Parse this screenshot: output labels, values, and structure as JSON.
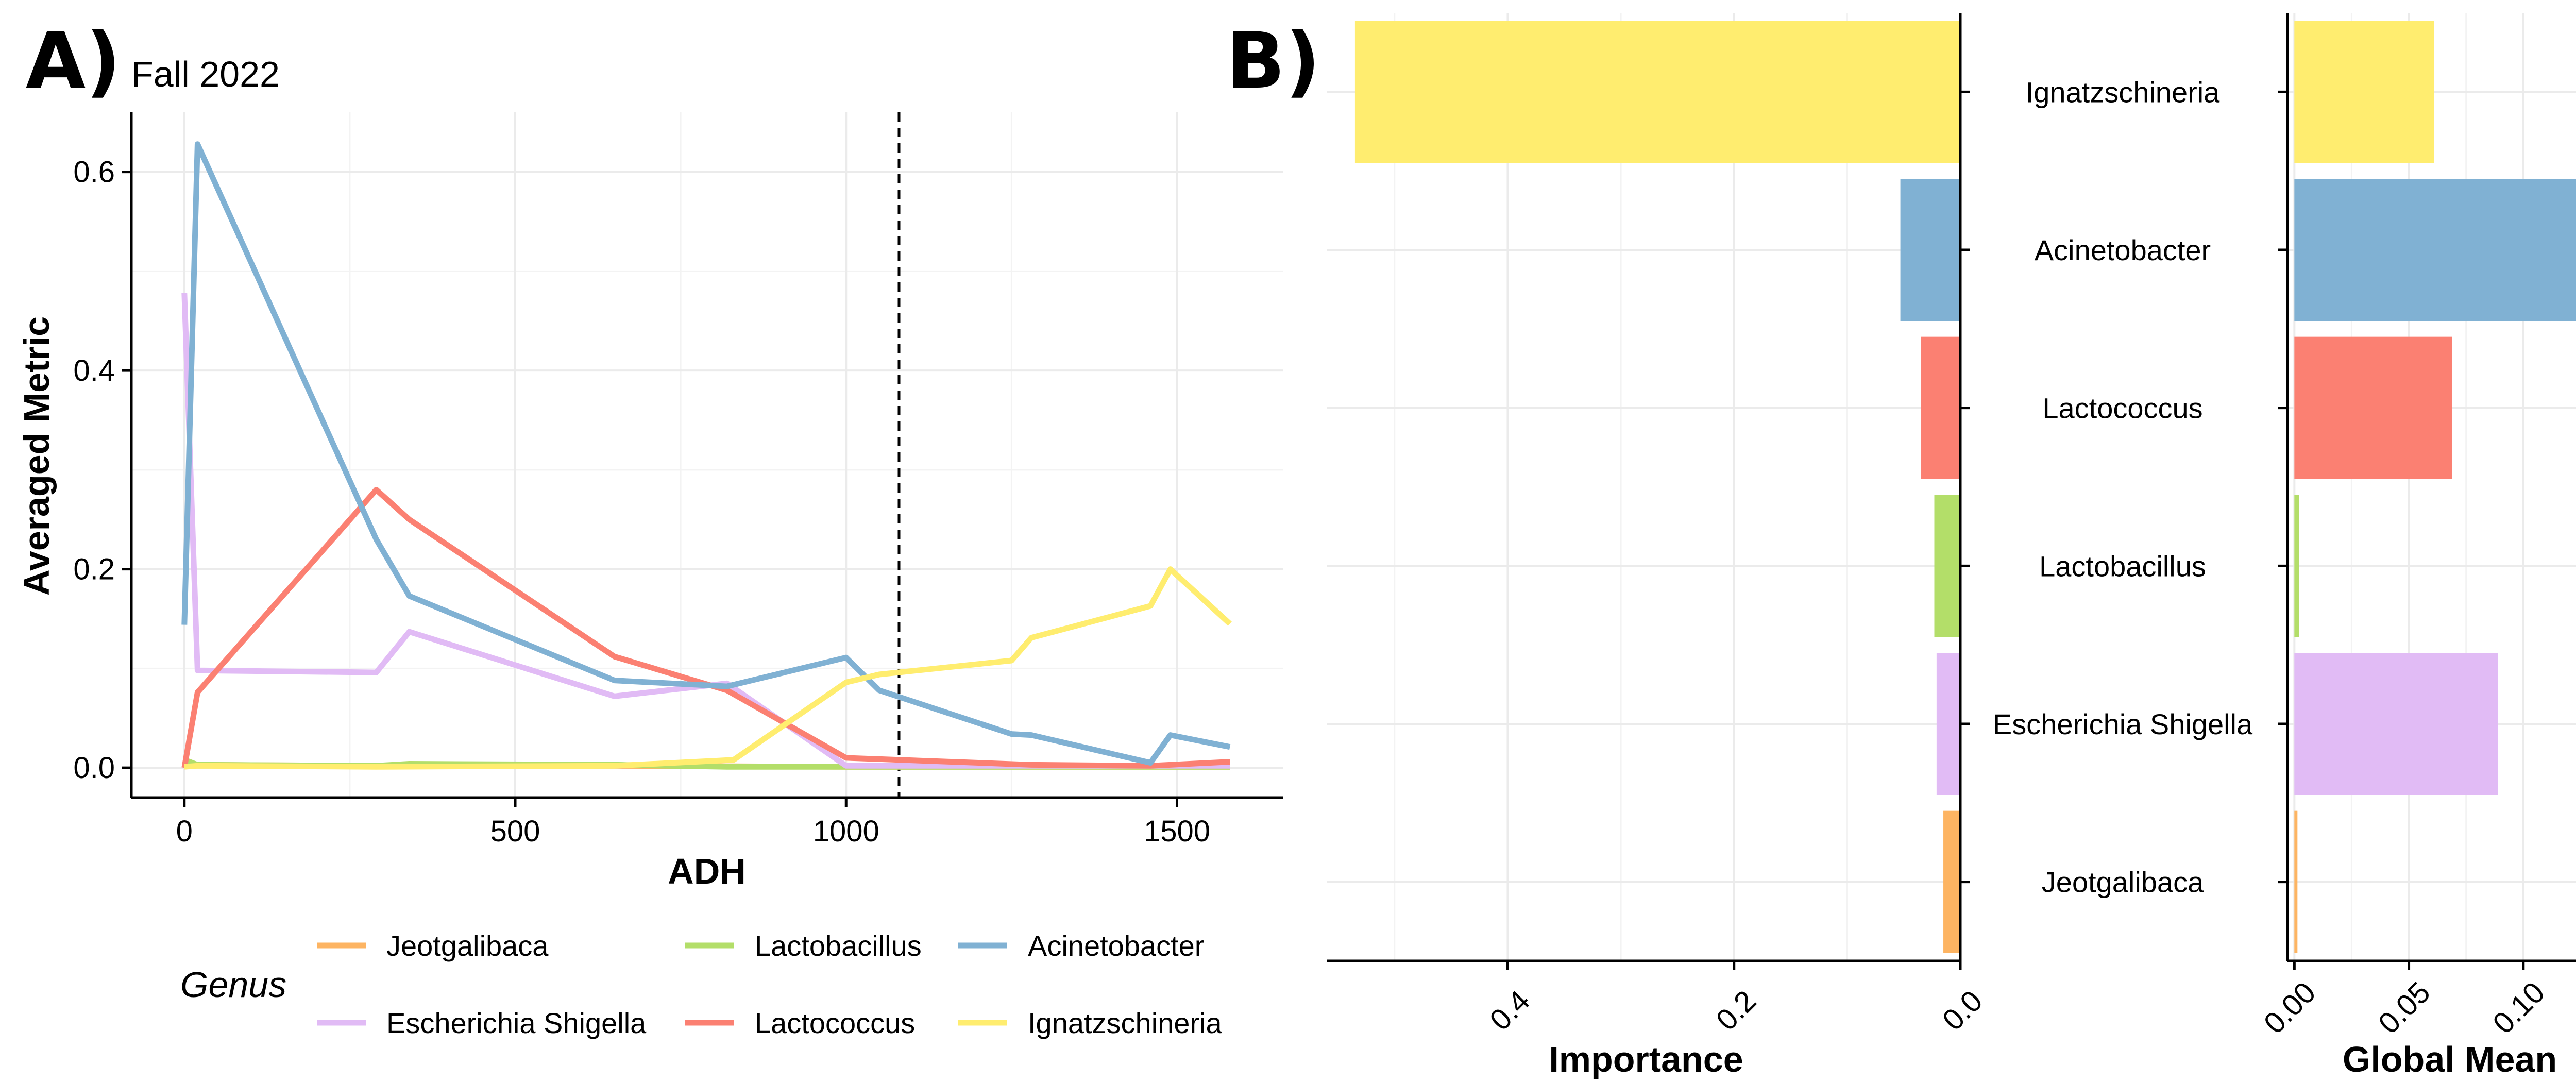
{
  "panel_a": {
    "letter": "A)",
    "subtitle": "Fall 2022",
    "xlabel": "ADH",
    "ylabel": "Averaged Metric",
    "x_ticks": [
      0,
      500,
      1000,
      1500
    ],
    "y_ticks": [
      0.0,
      0.2,
      0.4,
      0.6
    ],
    "y_tick_labels": [
      "0.0",
      "0.2",
      "0.4",
      "0.6"
    ],
    "xlim": [
      -80,
      1660
    ],
    "ylim": [
      -0.03,
      0.66
    ],
    "vline_x": 1080,
    "legend_title": "Genus"
  },
  "panel_b": {
    "letter": "B)",
    "importance_xlabel": "Importance",
    "global_mean_xlabel": "Global Mean",
    "importance_ticks": [
      0.4,
      0.2,
      0.0
    ],
    "importance_tick_labels": [
      "0.4",
      "0.2",
      "0.0"
    ],
    "importance_xlim": [
      0.56,
      0
    ],
    "global_mean_ticks": [
      0.0,
      0.05,
      0.1
    ],
    "global_mean_tick_labels": [
      "0.00",
      "0.05",
      "0.10"
    ],
    "global_mean_xlim": [
      -0.003,
      0.141
    ]
  },
  "colors": {
    "Jeotgalibaca": "#FDB462",
    "Escherichia Shigella": "#E1BBF5",
    "Lactobacillus": "#B3DE69",
    "Lactococcus": "#FB8072",
    "Acinetobacter": "#80B1D3",
    "Ignatzschineria": "#FFED6F"
  },
  "chart_data": [
    {
      "type": "line",
      "title": "Fall 2022",
      "xlabel": "ADH",
      "ylabel": "Averaged Metric",
      "xlim": [
        -80,
        1660
      ],
      "ylim": [
        -0.03,
        0.66
      ],
      "grid": true,
      "legend_placement": "bottom",
      "legend_title": "Genus",
      "legend_order": [
        "Jeotgalibaca",
        "Lactobacillus",
        "Acinetobacter",
        "Escherichia Shigella",
        "Lactococcus",
        "Ignatzschineria"
      ],
      "reference_line_x": 1080,
      "series": [
        {
          "name": "Jeotgalibaca",
          "x": [
            0,
            20,
            290,
            340,
            650,
            1000,
            1580
          ],
          "y": [
            0.004,
            0.003,
            0.002,
            0.002,
            0.002,
            0.001,
            0.001
          ]
        },
        {
          "name": "Lactobacillus",
          "x": [
            0,
            20,
            290,
            340,
            650,
            820,
            1000,
            1580
          ],
          "y": [
            0.008,
            0.003,
            0.002,
            0.004,
            0.003,
            0.001,
            0.001,
            0.001
          ]
        },
        {
          "name": "Escherichia Shigella",
          "x": [
            0,
            20,
            290,
            340,
            650,
            820,
            1000,
            1580
          ],
          "y": [
            0.478,
            0.098,
            0.096,
            0.137,
            0.072,
            0.085,
            0.002,
            0.002
          ]
        },
        {
          "name": "Lactococcus",
          "x": [
            0,
            20,
            290,
            340,
            650,
            820,
            1000,
            1280,
            1460,
            1580
          ],
          "y": [
            0.0,
            0.076,
            0.28,
            0.25,
            0.112,
            0.078,
            0.01,
            0.003,
            0.002,
            0.006
          ]
        },
        {
          "name": "Acinetobacter",
          "x": [
            0,
            20,
            290,
            340,
            650,
            820,
            1000,
            1050,
            1250,
            1280,
            1460,
            1490,
            1580
          ],
          "y": [
            0.144,
            0.628,
            0.23,
            0.173,
            0.088,
            0.082,
            0.111,
            0.078,
            0.034,
            0.033,
            0.005,
            0.033,
            0.021
          ]
        },
        {
          "name": "Ignatzschineria",
          "x": [
            0,
            20,
            290,
            650,
            830,
            1000,
            1050,
            1250,
            1280,
            1460,
            1490,
            1580
          ],
          "y": [
            0.001,
            0.002,
            0.001,
            0.002,
            0.008,
            0.086,
            0.094,
            0.108,
            0.131,
            0.163,
            0.2,
            0.145
          ]
        }
      ]
    },
    {
      "type": "bar",
      "orientation": "horizontal",
      "xlabel": "Importance",
      "categories": [
        "Ignatzschineria",
        "Acinetobacter",
        "Lactococcus",
        "Lactobacillus",
        "Escherichia Shigella",
        "Jeotgalibaca"
      ],
      "values": [
        0.535,
        0.053,
        0.035,
        0.023,
        0.021,
        0.015
      ],
      "xlim": [
        0.56,
        0
      ],
      "axis_reversed": true,
      "grid": true
    },
    {
      "type": "bar",
      "orientation": "horizontal",
      "xlabel": "Global Mean",
      "categories": [
        "Ignatzschineria",
        "Acinetobacter",
        "Lactococcus",
        "Lactobacillus",
        "Escherichia Shigella",
        "Jeotgalibaca"
      ],
      "values": [
        0.061,
        0.138,
        0.069,
        0.002,
        0.089,
        0.001
      ],
      "xlim": [
        -0.003,
        0.141
      ],
      "grid": true
    }
  ]
}
